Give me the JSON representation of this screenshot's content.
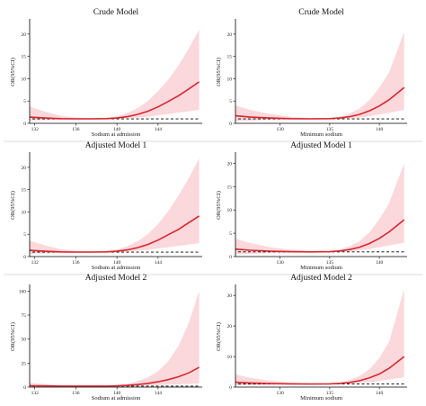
{
  "chart_data": [
    {
      "type": "line",
      "title": "Crude Model",
      "xlabel": "Sodium at admission",
      "ylabel": "OR(95%CI)",
      "xlim": [
        131.5,
        148.3
      ],
      "ylim": [
        0,
        23
      ],
      "xticks": [
        132,
        136,
        140,
        144
      ],
      "yticks": [
        0,
        5,
        10,
        15,
        20
      ],
      "reference_line": 1,
      "x": [
        131.5,
        133,
        134.5,
        136,
        137.5,
        139,
        140,
        141,
        142,
        143,
        144,
        145,
        146,
        147,
        148
      ],
      "or": [
        1.4,
        1.2,
        1.05,
        1.0,
        1.0,
        1.05,
        1.2,
        1.5,
        2.0,
        2.7,
        3.7,
        4.9,
        6.2,
        7.7,
        9.3
      ],
      "lower": [
        0.6,
        0.7,
        0.8,
        0.85,
        0.88,
        0.92,
        1.0,
        1.1,
        1.3,
        1.5,
        1.8,
        2.1,
        2.4,
        2.7,
        3.0
      ],
      "upper": [
        3.8,
        2.6,
        1.7,
        1.3,
        1.2,
        1.3,
        1.6,
        2.3,
        3.4,
        5.0,
        7.2,
        9.8,
        13.0,
        16.8,
        21.0
      ]
    },
    {
      "type": "line",
      "title": "Crude Model",
      "xlabel": "Minimum sodium",
      "ylabel": "OR(95%CI)",
      "xlim": [
        125.5,
        142.8
      ],
      "ylim": [
        0,
        23
      ],
      "xticks": [
        130,
        135,
        140
      ],
      "yticks": [
        0,
        5,
        10,
        15,
        20
      ],
      "reference_line": 1,
      "x": [
        125.5,
        127,
        129,
        131,
        133,
        135,
        136,
        137,
        138,
        139,
        140,
        141,
        142.5
      ],
      "or": [
        1.7,
        1.4,
        1.2,
        1.05,
        1.0,
        1.05,
        1.2,
        1.5,
        2.0,
        2.8,
        3.9,
        5.3,
        8.0
      ],
      "lower": [
        0.5,
        0.6,
        0.75,
        0.85,
        0.9,
        0.95,
        1.0,
        1.1,
        1.3,
        1.6,
        2.0,
        2.4,
        3.0
      ],
      "upper": [
        4.0,
        3.0,
        2.1,
        1.5,
        1.2,
        1.2,
        1.5,
        2.2,
        3.3,
        5.2,
        8.0,
        11.5,
        20.5
      ]
    },
    {
      "type": "line",
      "title": "Adjusted Model 1",
      "xlabel": "Sodium at admission",
      "ylabel": "OR(95%CI)",
      "xlim": [
        131.5,
        148.3
      ],
      "ylim": [
        0,
        23
      ],
      "xticks": [
        132,
        136,
        140,
        144
      ],
      "yticks": [
        0,
        5,
        10,
        15,
        20
      ],
      "reference_line": 1,
      "x": [
        131.5,
        133,
        134.5,
        136,
        137.5,
        139,
        140,
        141,
        142,
        143,
        144,
        145,
        146,
        147,
        148
      ],
      "or": [
        1.4,
        1.2,
        1.05,
        1.0,
        1.0,
        1.05,
        1.2,
        1.5,
        2.0,
        2.7,
        3.7,
        4.9,
        6.1,
        7.6,
        9.1
      ],
      "lower": [
        0.6,
        0.7,
        0.8,
        0.85,
        0.88,
        0.92,
        1.0,
        1.1,
        1.3,
        1.5,
        1.8,
        2.1,
        2.4,
        2.7,
        3.0
      ],
      "upper": [
        3.6,
        2.5,
        1.7,
        1.3,
        1.2,
        1.3,
        1.6,
        2.3,
        3.4,
        5.0,
        7.3,
        10.2,
        13.7,
        17.6,
        22.0
      ]
    },
    {
      "type": "line",
      "title": "Adjusted Model 1",
      "xlabel": "Minimum sodium",
      "ylabel": "OR(95%CI)",
      "xlim": [
        125.5,
        142.8
      ],
      "ylim": [
        0,
        22
      ],
      "xticks": [
        130,
        135,
        140
      ],
      "yticks": [
        0,
        5,
        10,
        15,
        20
      ],
      "reference_line": 1,
      "x": [
        125.5,
        127,
        129,
        131,
        133,
        135,
        136,
        137,
        138,
        139,
        140,
        141,
        142.5
      ],
      "or": [
        1.6,
        1.35,
        1.15,
        1.05,
        1.0,
        1.05,
        1.2,
        1.5,
        2.0,
        2.8,
        3.9,
        5.3,
        7.9
      ],
      "lower": [
        0.5,
        0.6,
        0.75,
        0.85,
        0.9,
        0.95,
        1.0,
        1.1,
        1.3,
        1.6,
        2.0,
        2.4,
        3.0
      ],
      "upper": [
        3.8,
        2.9,
        2.0,
        1.5,
        1.2,
        1.2,
        1.5,
        2.2,
        3.3,
        5.2,
        8.0,
        11.5,
        20.0
      ]
    },
    {
      "type": "line",
      "title": "Adjusted Model 2",
      "xlabel": "Sodium at admission",
      "ylabel": "OR(95%CI)",
      "xlim": [
        131.5,
        148.3
      ],
      "ylim": [
        0,
        105
      ],
      "xticks": [
        132,
        136,
        140,
        144
      ],
      "yticks": [
        0,
        25,
        50,
        75,
        100
      ],
      "reference_line": 1,
      "x": [
        131.5,
        133,
        134.5,
        136,
        137.5,
        139,
        140,
        141,
        142,
        143,
        144,
        145,
        146,
        147,
        148
      ],
      "or": [
        1.4,
        1.2,
        1.05,
        1.0,
        1.0,
        1.05,
        1.3,
        1.8,
        2.6,
        3.8,
        5.5,
        7.8,
        10.8,
        14.8,
        20.5
      ],
      "lower": [
        0.5,
        0.6,
        0.75,
        0.85,
        0.88,
        0.92,
        1.0,
        1.1,
        1.3,
        1.6,
        2.0,
        2.4,
        2.8,
        3.3,
        3.8
      ],
      "upper": [
        4.5,
        3.0,
        1.9,
        1.3,
        1.2,
        1.4,
        2.0,
        3.5,
        6.0,
        10.0,
        16.5,
        27.0,
        43.0,
        67.0,
        100.0
      ]
    },
    {
      "type": "line",
      "title": "Adjusted Model 2",
      "xlabel": "Minimum sodium",
      "ylabel": "OR(95%CI)",
      "xlim": [
        125.5,
        142.8
      ],
      "ylim": [
        0,
        33
      ],
      "xticks": [
        130,
        135,
        140
      ],
      "yticks": [
        0,
        10,
        20,
        30
      ],
      "reference_line": 1,
      "x": [
        125.5,
        127,
        129,
        131,
        133,
        135,
        136,
        137,
        138,
        139,
        140,
        141,
        142.5
      ],
      "or": [
        1.6,
        1.35,
        1.15,
        1.05,
        1.0,
        1.05,
        1.2,
        1.5,
        2.1,
        3.0,
        4.3,
        6.2,
        10.0
      ],
      "lower": [
        0.5,
        0.6,
        0.75,
        0.85,
        0.9,
        0.95,
        1.0,
        1.1,
        1.3,
        1.6,
        2.0,
        2.5,
        3.2
      ],
      "upper": [
        4.2,
        3.0,
        2.1,
        1.5,
        1.2,
        1.2,
        1.5,
        2.3,
        3.6,
        5.8,
        9.5,
        15.0,
        32.0
      ]
    }
  ],
  "colors": {
    "line": "#d7262f",
    "ci_band": "#f7b8bd",
    "reference": "#000000"
  }
}
